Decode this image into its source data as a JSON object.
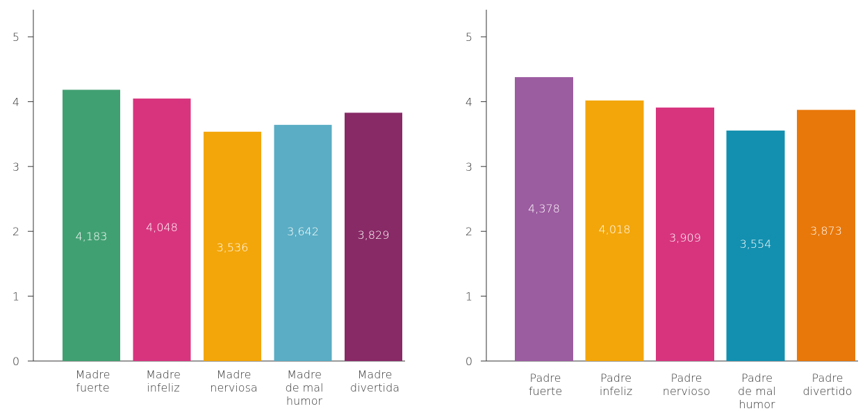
{
  "chart_data": [
    {
      "type": "bar",
      "title": "",
      "xlabel": "",
      "ylabel": "",
      "ylim": [
        0,
        5
      ],
      "yticks": [
        0,
        1,
        2,
        3,
        4,
        5
      ],
      "ytick_labels": [
        "0",
        "1",
        "2",
        "3",
        "4",
        "5"
      ],
      "grid": false,
      "categories": [
        [
          "Madre",
          "fuerte"
        ],
        [
          "Madre",
          "infeliz"
        ],
        [
          "Madre",
          "nerviosa"
        ],
        [
          "Madre",
          "de mal",
          "humor"
        ],
        [
          "Madre",
          "divertida"
        ]
      ],
      "values": [
        4.183,
        4.048,
        3.536,
        3.642,
        3.829
      ],
      "value_labels": [
        "4,183",
        "4,048",
        "3,536",
        "3,642",
        "3,829"
      ],
      "colors": [
        "#41a072",
        "#d8347e",
        "#f3a60a",
        "#5aadc4",
        "#882a66"
      ]
    },
    {
      "type": "bar",
      "title": "",
      "xlabel": "",
      "ylabel": "",
      "ylim": [
        0,
        5
      ],
      "yticks": [
        0,
        1,
        2,
        3,
        4,
        5
      ],
      "ytick_labels": [
        "0",
        "1",
        "2",
        "3",
        "4",
        "5"
      ],
      "grid": false,
      "categories": [
        [
          "Padre",
          "fuerte"
        ],
        [
          "Padre",
          "infeliz"
        ],
        [
          "Padre",
          "nervioso"
        ],
        [
          "Padre",
          "de mal",
          "humor"
        ],
        [
          "Padre",
          "divertido"
        ]
      ],
      "values": [
        4.378,
        4.018,
        3.909,
        3.554,
        3.873
      ],
      "value_labels": [
        "4,378",
        "4,018",
        "3,909",
        "3,554",
        "3,873"
      ],
      "colors": [
        "#9c5ca0",
        "#f3a60a",
        "#d8347e",
        "#1390b0",
        "#e8780a"
      ]
    }
  ]
}
